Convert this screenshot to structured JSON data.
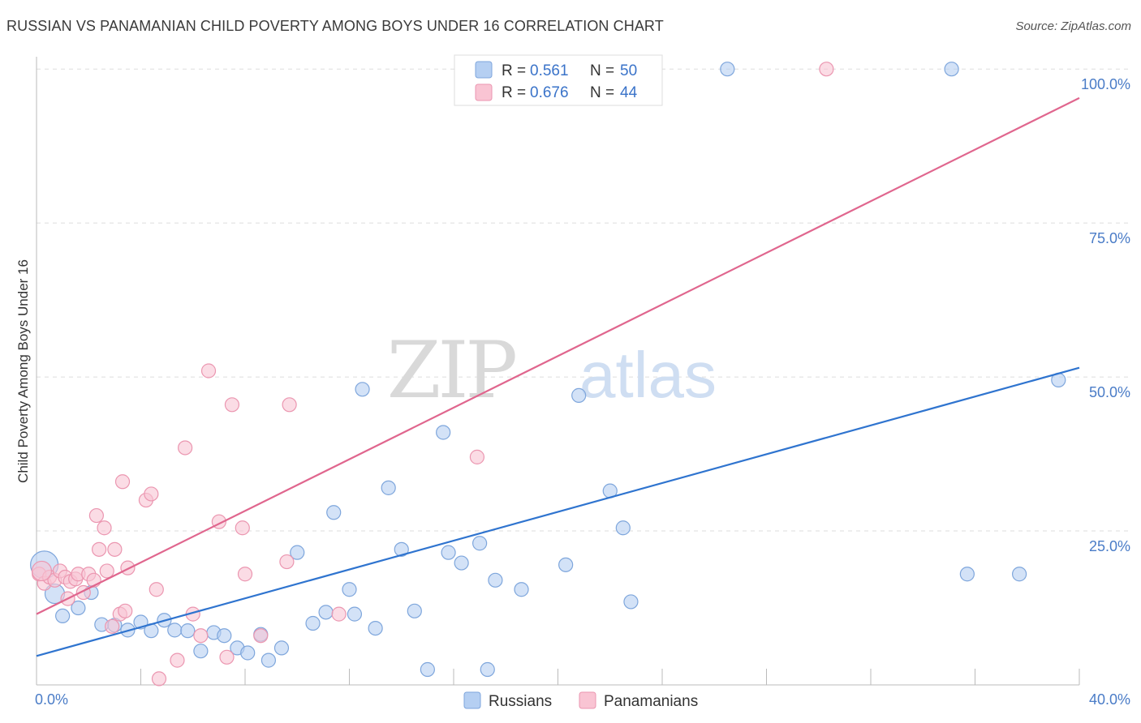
{
  "header": {
    "title": "RUSSIAN VS PANAMANIAN CHILD POVERTY AMONG BOYS UNDER 16 CORRELATION CHART",
    "source": "Source: ZipAtlas.com"
  },
  "watermark": {
    "zip": "ZIP",
    "atlas": "atlas"
  },
  "legend_top": [
    {
      "r_label": "R =",
      "r_value": "0.561",
      "n_label": "N =",
      "n_value": "50"
    },
    {
      "r_label": "R =",
      "r_value": "0.676",
      "n_label": "N =",
      "n_value": "44"
    }
  ],
  "colors": {
    "russians_fill": "#b5cff2",
    "russians_stroke": "#7ea6dc",
    "russians_line": "#2f74cf",
    "panamanians_fill": "#f9c4d3",
    "panamanians_stroke": "#eb96b0",
    "panamanians_line": "#e0668e",
    "axis_text": "#4a7cc7",
    "grid": "#dddddd"
  },
  "chart_data": {
    "type": "scatter",
    "title": "RUSSIAN VS PANAMANIAN CHILD POVERTY AMONG BOYS UNDER 16 CORRELATION CHART",
    "xlabel": "",
    "ylabel": "Child Poverty Among Boys Under 16",
    "xlim": [
      0,
      40
    ],
    "ylim": [
      0,
      102
    ],
    "x_tick_labels": [
      "0.0%",
      "40.0%"
    ],
    "y_ticks": [
      25,
      50,
      75,
      100
    ],
    "y_tick_labels": [
      "25.0%",
      "50.0%",
      "75.0%",
      "100.0%"
    ],
    "legend_position": "top-center",
    "series": [
      {
        "name": "Russians",
        "r": 0.561,
        "n": 50,
        "trend": {
          "x": [
            0,
            40
          ],
          "y": [
            4.7,
            51.5
          ]
        },
        "points": [
          {
            "x": 0.3,
            "y": 19.5,
            "s": 3
          },
          {
            "x": 0.7,
            "y": 14.8,
            "s": 2
          },
          {
            "x": 1.6,
            "y": 12.5,
            "s": 1
          },
          {
            "x": 2.1,
            "y": 15.0,
            "s": 1
          },
          {
            "x": 2.5,
            "y": 9.8,
            "s": 1
          },
          {
            "x": 3.0,
            "y": 9.7,
            "s": 1
          },
          {
            "x": 3.5,
            "y": 8.9,
            "s": 1
          },
          {
            "x": 4.0,
            "y": 10.2,
            "s": 1
          },
          {
            "x": 4.4,
            "y": 8.8,
            "s": 1
          },
          {
            "x": 4.9,
            "y": 10.5,
            "s": 1
          },
          {
            "x": 5.3,
            "y": 8.9,
            "s": 1
          },
          {
            "x": 5.8,
            "y": 8.8,
            "s": 1
          },
          {
            "x": 6.3,
            "y": 5.5,
            "s": 1
          },
          {
            "x": 6.8,
            "y": 8.5,
            "s": 1
          },
          {
            "x": 7.2,
            "y": 8.0,
            "s": 1
          },
          {
            "x": 7.7,
            "y": 6.0,
            "s": 1
          },
          {
            "x": 8.1,
            "y": 5.2,
            "s": 1
          },
          {
            "x": 8.6,
            "y": 8.2,
            "s": 1
          },
          {
            "x": 8.9,
            "y": 4.0,
            "s": 1
          },
          {
            "x": 9.4,
            "y": 6.0,
            "s": 1
          },
          {
            "x": 10.0,
            "y": 21.5,
            "s": 1
          },
          {
            "x": 10.6,
            "y": 10.0,
            "s": 1
          },
          {
            "x": 11.1,
            "y": 11.8,
            "s": 1
          },
          {
            "x": 11.4,
            "y": 28.0,
            "s": 1
          },
          {
            "x": 12.0,
            "y": 15.5,
            "s": 1
          },
          {
            "x": 12.2,
            "y": 11.5,
            "s": 1
          },
          {
            "x": 12.5,
            "y": 48.0,
            "s": 1
          },
          {
            "x": 13.0,
            "y": 9.2,
            "s": 1
          },
          {
            "x": 13.5,
            "y": 32.0,
            "s": 1
          },
          {
            "x": 14.0,
            "y": 22.0,
            "s": 1
          },
          {
            "x": 14.5,
            "y": 12.0,
            "s": 1
          },
          {
            "x": 15.0,
            "y": 2.5,
            "s": 1
          },
          {
            "x": 15.6,
            "y": 41.0,
            "s": 1
          },
          {
            "x": 15.8,
            "y": 21.5,
            "s": 1
          },
          {
            "x": 16.3,
            "y": 19.8,
            "s": 1
          },
          {
            "x": 17.0,
            "y": 23.0,
            "s": 1
          },
          {
            "x": 17.3,
            "y": 2.5,
            "s": 1
          },
          {
            "x": 17.6,
            "y": 17.0,
            "s": 1
          },
          {
            "x": 18.6,
            "y": 15.5,
            "s": 1
          },
          {
            "x": 20.3,
            "y": 19.5,
            "s": 1
          },
          {
            "x": 20.8,
            "y": 47.0,
            "s": 1
          },
          {
            "x": 22.0,
            "y": 31.5,
            "s": 1
          },
          {
            "x": 22.5,
            "y": 25.5,
            "s": 1
          },
          {
            "x": 22.8,
            "y": 13.5,
            "s": 1
          },
          {
            "x": 26.5,
            "y": 100.0,
            "s": 1
          },
          {
            "x": 35.1,
            "y": 100.0,
            "s": 1
          },
          {
            "x": 35.7,
            "y": 18.0,
            "s": 1
          },
          {
            "x": 37.7,
            "y": 18.0,
            "s": 1
          },
          {
            "x": 39.2,
            "y": 49.5,
            "s": 1
          },
          {
            "x": 1.0,
            "y": 11.2,
            "s": 1
          }
        ]
      },
      {
        "name": "Panamanians",
        "r": 0.676,
        "n": 44,
        "trend": {
          "x": [
            0,
            40
          ],
          "y": [
            11.5,
            95.3
          ]
        },
        "points": [
          {
            "x": 0.1,
            "y": 18.0,
            "s": 1
          },
          {
            "x": 0.3,
            "y": 16.5,
            "s": 1
          },
          {
            "x": 0.5,
            "y": 17.5,
            "s": 1
          },
          {
            "x": 0.7,
            "y": 17.0,
            "s": 1
          },
          {
            "x": 0.9,
            "y": 18.5,
            "s": 1
          },
          {
            "x": 1.1,
            "y": 17.5,
            "s": 1
          },
          {
            "x": 1.3,
            "y": 16.8,
            "s": 1
          },
          {
            "x": 1.5,
            "y": 17.2,
            "s": 1
          },
          {
            "x": 1.6,
            "y": 18.0,
            "s": 1
          },
          {
            "x": 1.8,
            "y": 15.0,
            "s": 1
          },
          {
            "x": 2.0,
            "y": 18.0,
            "s": 1
          },
          {
            "x": 2.2,
            "y": 17.0,
            "s": 1
          },
          {
            "x": 2.3,
            "y": 27.5,
            "s": 1
          },
          {
            "x": 2.4,
            "y": 22.0,
            "s": 1
          },
          {
            "x": 2.6,
            "y": 25.5,
            "s": 1
          },
          {
            "x": 2.7,
            "y": 18.5,
            "s": 1
          },
          {
            "x": 2.9,
            "y": 9.5,
            "s": 1
          },
          {
            "x": 3.0,
            "y": 22.0,
            "s": 1
          },
          {
            "x": 3.2,
            "y": 11.5,
            "s": 1
          },
          {
            "x": 3.3,
            "y": 33.0,
            "s": 1
          },
          {
            "x": 3.4,
            "y": 12.0,
            "s": 1
          },
          {
            "x": 3.5,
            "y": 19.0,
            "s": 1
          },
          {
            "x": 4.2,
            "y": 30.0,
            "s": 1
          },
          {
            "x": 4.4,
            "y": 31.0,
            "s": 1
          },
          {
            "x": 4.6,
            "y": 15.5,
            "s": 1
          },
          {
            "x": 4.7,
            "y": 1.0,
            "s": 1
          },
          {
            "x": 5.4,
            "y": 4.0,
            "s": 1
          },
          {
            "x": 5.7,
            "y": 38.5,
            "s": 1
          },
          {
            "x": 6.0,
            "y": 11.5,
            "s": 1
          },
          {
            "x": 6.3,
            "y": 8.0,
            "s": 1
          },
          {
            "x": 6.6,
            "y": 51.0,
            "s": 1
          },
          {
            "x": 7.0,
            "y": 26.5,
            "s": 1
          },
          {
            "x": 7.3,
            "y": 4.5,
            "s": 1
          },
          {
            "x": 7.5,
            "y": 45.5,
            "s": 1
          },
          {
            "x": 7.9,
            "y": 25.5,
            "s": 1
          },
          {
            "x": 8.0,
            "y": 18.0,
            "s": 1
          },
          {
            "x": 8.6,
            "y": 8.0,
            "s": 1
          },
          {
            "x": 9.7,
            "y": 45.5,
            "s": 1
          },
          {
            "x": 9.6,
            "y": 20.0,
            "s": 1
          },
          {
            "x": 11.6,
            "y": 11.5,
            "s": 1
          },
          {
            "x": 16.9,
            "y": 37.0,
            "s": 1
          },
          {
            "x": 30.3,
            "y": 100.0,
            "s": 1
          },
          {
            "x": 1.2,
            "y": 14.0,
            "s": 1
          },
          {
            "x": 0.2,
            "y": 18.5,
            "s": 2
          }
        ]
      }
    ]
  }
}
